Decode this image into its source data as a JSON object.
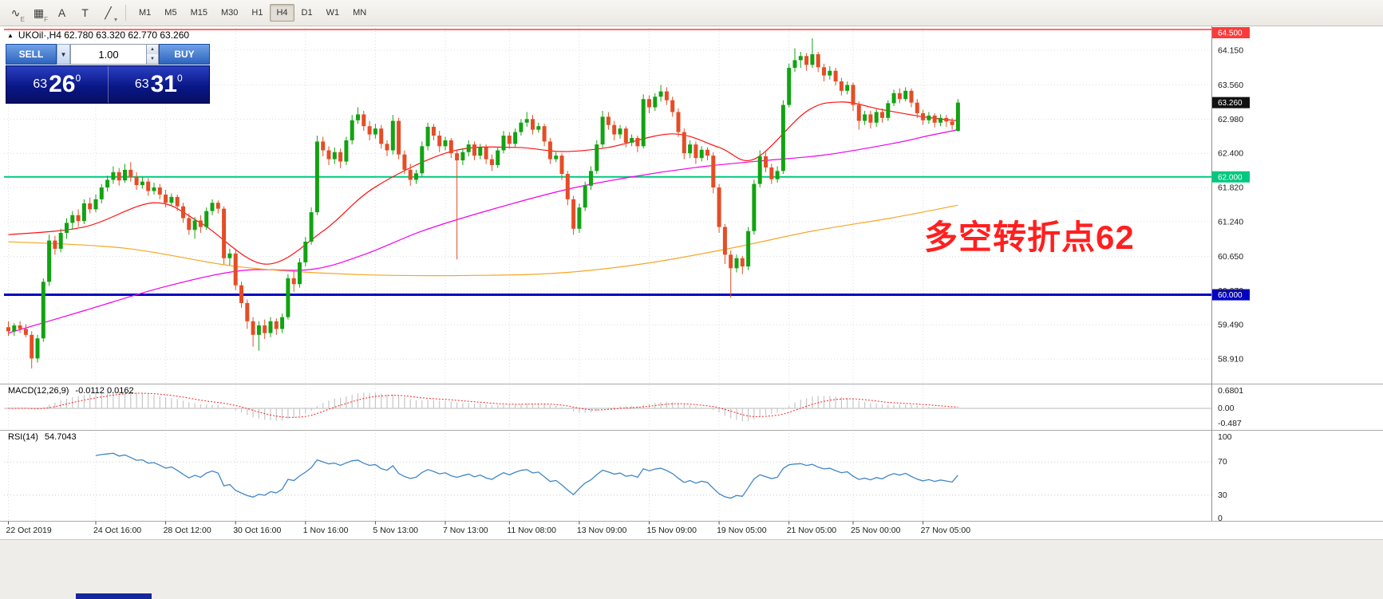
{
  "toolbar": {
    "icons": [
      {
        "name": "indicators-icon",
        "glyph": "∿",
        "badge": "E"
      },
      {
        "name": "profiles-icon",
        "glyph": "▦",
        "badge": "F"
      },
      {
        "name": "cursor-tool-icon",
        "glyph": "A",
        "badge": ""
      },
      {
        "name": "text-tool-icon",
        "glyph": "T",
        "badge": ""
      },
      {
        "name": "drawing-tools-icon",
        "glyph": "╱",
        "badge": "▾"
      }
    ],
    "timeframes": [
      "M1",
      "M5",
      "M15",
      "M30",
      "H1",
      "H4",
      "D1",
      "W1",
      "MN"
    ],
    "active_timeframe": "H4"
  },
  "chart_header": {
    "collapse_marker": "▲",
    "symbol_line": "UKOil·,H4  62.780 63.320 62.770 63.260"
  },
  "trade_panel": {
    "sell_label": "SELL",
    "buy_label": "BUY",
    "volume": "1.00",
    "dropdown_glyph": "▼",
    "spin_up_glyph": "▲",
    "spin_down_glyph": "▼",
    "bid": {
      "prefix": "63",
      "big": "26",
      "sup": "0"
    },
    "ask": {
      "prefix": "63",
      "big": "31",
      "sup": "0"
    }
  },
  "annotation": {
    "text": "多空转折点62",
    "color": "#ff1f1f"
  },
  "chart_data": {
    "type": "candlestick",
    "symbol": "UKOil",
    "timeframe": "H4",
    "ohlc_display": {
      "open": "62.780",
      "high": "63.320",
      "low": "62.770",
      "close": "63.260"
    },
    "up_color": "#12a312",
    "down_color": "#e44d26",
    "y_axis": {
      "tick_values": [
        64.15,
        63.56,
        62.98,
        62.4,
        61.82,
        61.24,
        60.65,
        60.07,
        59.49,
        58.91
      ],
      "tick_labels": [
        "64.150",
        "63.560",
        "62.980",
        "62.400",
        "61.820",
        "61.240",
        "60.650",
        "60.070",
        "59.490",
        "58.910"
      ]
    },
    "price_lines": [
      {
        "name": "resistance-line",
        "value": 64.5,
        "label": "64.500",
        "color": "#fb3b3b",
        "width": 1.4
      },
      {
        "name": "pivot-line-62",
        "value": 62.0,
        "label": "62.000",
        "color": "#00c97e",
        "width": 2
      },
      {
        "name": "support-line-60",
        "value": 60.0,
        "label": "60.000",
        "color": "#0202c4",
        "width": 3
      }
    ],
    "current_price": {
      "value": 63.26,
      "label": "63.260",
      "badge_color": "#111111"
    },
    "x_axis_labels": [
      {
        "index": 0,
        "label": "22 Oct 2019"
      },
      {
        "index": 15,
        "label": "24 Oct 16:00"
      },
      {
        "index": 27,
        "label": "28 Oct 12:00"
      },
      {
        "index": 39,
        "label": "30 Oct 16:00"
      },
      {
        "index": 51,
        "label": "1 Nov 16:00"
      },
      {
        "index": 63,
        "label": "5 Nov 13:00"
      },
      {
        "index": 75,
        "label": "7 Nov 13:00"
      },
      {
        "index": 86,
        "label": "11 Nov 08:00"
      },
      {
        "index": 98,
        "label": "13 Nov 09:00"
      },
      {
        "index": 110,
        "label": "15 Nov 09:00"
      },
      {
        "index": 122,
        "label": "19 Nov 05:00"
      },
      {
        "index": 134,
        "label": "21 Nov 05:00"
      },
      {
        "index": 145,
        "label": "25 Nov 00:00"
      },
      {
        "index": 157,
        "label": "27 Nov 05:00"
      }
    ],
    "candles": [
      [
        59.45,
        59.55,
        59.3,
        59.38
      ],
      [
        59.38,
        59.52,
        59.3,
        59.48
      ],
      [
        59.48,
        59.55,
        59.35,
        59.42
      ],
      [
        59.42,
        59.5,
        59.28,
        59.32
      ],
      [
        59.32,
        59.38,
        58.75,
        58.92
      ],
      [
        58.92,
        59.32,
        58.85,
        59.26
      ],
      [
        59.26,
        60.28,
        59.2,
        60.22
      ],
      [
        60.22,
        61.02,
        60.15,
        60.92
      ],
      [
        60.92,
        61.0,
        60.68,
        60.78
      ],
      [
        60.78,
        61.12,
        60.72,
        61.05
      ],
      [
        61.05,
        61.3,
        60.95,
        61.22
      ],
      [
        61.22,
        61.42,
        61.1,
        61.35
      ],
      [
        61.35,
        61.45,
        61.15,
        61.25
      ],
      [
        61.25,
        61.62,
        61.2,
        61.55
      ],
      [
        61.55,
        61.65,
        61.38,
        61.45
      ],
      [
        61.45,
        61.7,
        61.4,
        61.62
      ],
      [
        61.62,
        61.88,
        61.55,
        61.82
      ],
      [
        61.82,
        62.02,
        61.75,
        61.95
      ],
      [
        61.95,
        62.18,
        61.88,
        62.08
      ],
      [
        62.08,
        62.15,
        61.85,
        61.94
      ],
      [
        61.94,
        62.22,
        61.9,
        62.12
      ],
      [
        62.12,
        62.25,
        61.92,
        62.0
      ],
      [
        62.0,
        62.08,
        61.78,
        61.86
      ],
      [
        61.86,
        62.0,
        61.8,
        61.92
      ],
      [
        61.92,
        61.98,
        61.68,
        61.76
      ],
      [
        61.76,
        61.9,
        61.7,
        61.82
      ],
      [
        61.82,
        61.88,
        61.62,
        61.7
      ],
      [
        61.7,
        61.78,
        61.48,
        61.56
      ],
      [
        61.56,
        61.72,
        61.5,
        61.66
      ],
      [
        61.66,
        61.7,
        61.42,
        61.5
      ],
      [
        61.5,
        61.56,
        61.22,
        61.3
      ],
      [
        61.3,
        61.38,
        61.02,
        61.1
      ],
      [
        61.1,
        61.32,
        60.95,
        61.26
      ],
      [
        61.26,
        61.35,
        61.05,
        61.15
      ],
      [
        61.15,
        61.48,
        61.1,
        61.42
      ],
      [
        61.42,
        61.62,
        61.35,
        61.56
      ],
      [
        61.56,
        61.6,
        61.38,
        61.46
      ],
      [
        61.46,
        61.5,
        60.52,
        60.62
      ],
      [
        60.62,
        60.78,
        60.5,
        60.7
      ],
      [
        60.7,
        60.76,
        60.08,
        60.16
      ],
      [
        60.16,
        60.22,
        59.78,
        59.86
      ],
      [
        59.86,
        59.92,
        59.42,
        59.55
      ],
      [
        59.55,
        59.62,
        59.12,
        59.32
      ],
      [
        59.32,
        59.55,
        59.05,
        59.48
      ],
      [
        59.48,
        59.58,
        59.25,
        59.35
      ],
      [
        59.35,
        59.62,
        59.28,
        59.55
      ],
      [
        59.55,
        59.6,
        59.32,
        59.42
      ],
      [
        59.42,
        59.68,
        59.35,
        59.62
      ],
      [
        59.62,
        60.35,
        59.58,
        60.28
      ],
      [
        60.28,
        60.4,
        60.05,
        60.18
      ],
      [
        60.18,
        60.62,
        60.12,
        60.55
      ],
      [
        60.55,
        60.98,
        60.48,
        60.9
      ],
      [
        60.9,
        61.48,
        60.85,
        61.4
      ],
      [
        61.4,
        62.7,
        61.35,
        62.6
      ],
      [
        62.6,
        62.68,
        62.35,
        62.45
      ],
      [
        62.45,
        62.52,
        62.2,
        62.3
      ],
      [
        62.3,
        62.5,
        62.22,
        62.42
      ],
      [
        62.42,
        62.48,
        62.15,
        62.26
      ],
      [
        62.26,
        62.68,
        62.2,
        62.62
      ],
      [
        62.62,
        63.05,
        62.55,
        62.96
      ],
      [
        62.96,
        63.18,
        62.9,
        63.06
      ],
      [
        63.06,
        63.12,
        62.78,
        62.86
      ],
      [
        62.86,
        62.95,
        62.62,
        62.72
      ],
      [
        62.72,
        62.9,
        62.65,
        62.82
      ],
      [
        62.82,
        62.88,
        62.48,
        62.56
      ],
      [
        62.56,
        62.62,
        62.35,
        62.45
      ],
      [
        62.45,
        63.05,
        62.38,
        62.95
      ],
      [
        62.95,
        63.0,
        62.3,
        62.38
      ],
      [
        62.38,
        62.45,
        62.05,
        62.12
      ],
      [
        62.12,
        62.22,
        61.85,
        61.95
      ],
      [
        61.95,
        62.12,
        61.88,
        62.06
      ],
      [
        62.06,
        62.6,
        62.0,
        62.52
      ],
      [
        62.52,
        62.92,
        62.45,
        62.85
      ],
      [
        62.85,
        62.9,
        62.62,
        62.7
      ],
      [
        62.7,
        62.78,
        62.42,
        62.52
      ],
      [
        62.52,
        62.68,
        62.45,
        62.62
      ],
      [
        62.62,
        62.66,
        62.32,
        62.4
      ],
      [
        62.4,
        62.46,
        60.6,
        62.28
      ],
      [
        62.28,
        62.48,
        62.2,
        62.42
      ],
      [
        62.42,
        62.62,
        62.35,
        62.55
      ],
      [
        62.55,
        62.6,
        62.28,
        62.36
      ],
      [
        62.36,
        62.56,
        62.3,
        62.5
      ],
      [
        62.5,
        62.55,
        62.22,
        62.3
      ],
      [
        62.3,
        62.38,
        62.1,
        62.2
      ],
      [
        62.2,
        62.5,
        62.15,
        62.45
      ],
      [
        62.45,
        62.78,
        62.4,
        62.7
      ],
      [
        62.7,
        62.76,
        62.48,
        62.56
      ],
      [
        62.56,
        62.82,
        62.5,
        62.76
      ],
      [
        62.76,
        62.98,
        62.7,
        62.92
      ],
      [
        62.92,
        63.1,
        62.85,
        62.98
      ],
      [
        62.98,
        63.05,
        62.72,
        62.8
      ],
      [
        62.8,
        62.92,
        62.75,
        62.86
      ],
      [
        62.86,
        62.9,
        62.52,
        62.6
      ],
      [
        62.6,
        62.66,
        62.22,
        62.3
      ],
      [
        62.3,
        62.42,
        62.25,
        62.36
      ],
      [
        62.36,
        62.4,
        61.95,
        62.05
      ],
      [
        62.05,
        62.1,
        61.52,
        61.62
      ],
      [
        61.62,
        61.68,
        61.02,
        61.12
      ],
      [
        61.12,
        61.55,
        61.05,
        61.48
      ],
      [
        61.48,
        61.92,
        61.42,
        61.85
      ],
      [
        61.85,
        62.18,
        61.78,
        62.1
      ],
      [
        62.1,
        62.62,
        62.05,
        62.55
      ],
      [
        62.55,
        63.12,
        62.5,
        63.02
      ],
      [
        63.02,
        63.1,
        62.8,
        62.88
      ],
      [
        62.88,
        62.95,
        62.62,
        62.72
      ],
      [
        62.72,
        62.88,
        62.65,
        62.82
      ],
      [
        62.82,
        62.86,
        62.5,
        62.58
      ],
      [
        62.58,
        62.72,
        62.52,
        62.66
      ],
      [
        62.66,
        62.7,
        62.42,
        62.52
      ],
      [
        62.52,
        63.4,
        62.48,
        63.32
      ],
      [
        63.32,
        63.38,
        63.08,
        63.18
      ],
      [
        63.18,
        63.42,
        63.12,
        63.36
      ],
      [
        63.36,
        63.56,
        63.28,
        63.45
      ],
      [
        63.45,
        63.52,
        63.22,
        63.3
      ],
      [
        63.3,
        63.36,
        63.02,
        63.1
      ],
      [
        63.1,
        63.16,
        62.68,
        62.76
      ],
      [
        62.76,
        62.82,
        62.3,
        62.4
      ],
      [
        62.4,
        62.62,
        62.32,
        62.55
      ],
      [
        62.55,
        62.6,
        62.22,
        62.32
      ],
      [
        62.32,
        62.52,
        62.26,
        62.46
      ],
      [
        62.46,
        62.5,
        62.28,
        62.36
      ],
      [
        62.36,
        62.42,
        61.72,
        61.82
      ],
      [
        61.82,
        61.88,
        61.05,
        61.15
      ],
      [
        61.15,
        61.2,
        60.52,
        60.68
      ],
      [
        60.68,
        60.75,
        59.95,
        60.45
      ],
      [
        60.45,
        60.68,
        60.38,
        60.62
      ],
      [
        60.62,
        60.66,
        60.35,
        60.48
      ],
      [
        60.48,
        61.15,
        60.42,
        61.08
      ],
      [
        61.08,
        61.95,
        61.02,
        61.88
      ],
      [
        61.88,
        62.45,
        61.82,
        62.35
      ],
      [
        62.35,
        62.42,
        62.08,
        62.16
      ],
      [
        62.16,
        62.22,
        61.88,
        61.96
      ],
      [
        61.96,
        62.18,
        61.9,
        62.1
      ],
      [
        62.1,
        63.3,
        62.05,
        63.22
      ],
      [
        63.22,
        63.92,
        63.18,
        63.85
      ],
      [
        63.85,
        64.18,
        63.78,
        63.98
      ],
      [
        63.98,
        64.12,
        63.85,
        64.05
      ],
      [
        64.05,
        64.1,
        63.8,
        63.9
      ],
      [
        63.9,
        64.35,
        63.85,
        64.08
      ],
      [
        64.08,
        64.12,
        63.78,
        63.86
      ],
      [
        63.86,
        63.92,
        63.62,
        63.72
      ],
      [
        63.72,
        63.88,
        63.65,
        63.8
      ],
      [
        63.8,
        63.85,
        63.55,
        63.62
      ],
      [
        63.62,
        63.68,
        63.38,
        63.46
      ],
      [
        63.46,
        63.62,
        63.4,
        63.56
      ],
      [
        63.56,
        63.6,
        63.12,
        63.22
      ],
      [
        63.22,
        63.28,
        62.8,
        62.95
      ],
      [
        62.95,
        63.12,
        62.88,
        63.06
      ],
      [
        63.06,
        63.12,
        62.82,
        62.92
      ],
      [
        62.92,
        63.15,
        62.85,
        63.1
      ],
      [
        63.1,
        63.16,
        62.92,
        63.0
      ],
      [
        63.0,
        63.3,
        62.95,
        63.25
      ],
      [
        63.25,
        63.48,
        63.2,
        63.42
      ],
      [
        63.42,
        63.5,
        63.25,
        63.32
      ],
      [
        63.32,
        63.52,
        63.28,
        63.46
      ],
      [
        63.46,
        63.5,
        63.18,
        63.26
      ],
      [
        63.26,
        63.32,
        63.0,
        63.08
      ],
      [
        63.08,
        63.14,
        62.88,
        62.96
      ],
      [
        62.96,
        63.1,
        62.9,
        63.04
      ],
      [
        63.04,
        63.08,
        62.84,
        62.92
      ],
      [
        62.92,
        63.06,
        62.86,
        63.0
      ],
      [
        63.0,
        63.05,
        62.85,
        62.94
      ],
      [
        62.94,
        63.0,
        62.8,
        62.88
      ],
      [
        62.78,
        63.32,
        62.77,
        63.26
      ]
    ],
    "ma_lines": [
      {
        "name": "ma-fast",
        "color": "#ff1010",
        "points": [
          [
            0,
            61.02
          ],
          [
            13,
            61.15
          ],
          [
            25,
            61.56
          ],
          [
            33,
            61.22
          ],
          [
            44,
            60.52
          ],
          [
            54,
            61.08
          ],
          [
            63,
            61.83
          ],
          [
            76,
            62.43
          ],
          [
            87,
            62.5
          ],
          [
            95,
            62.43
          ],
          [
            103,
            62.5
          ],
          [
            114,
            62.73
          ],
          [
            122,
            62.5
          ],
          [
            128,
            62.3
          ],
          [
            137,
            63.11
          ],
          [
            143,
            63.27
          ],
          [
            150,
            63.14
          ],
          [
            157,
            63.02
          ],
          [
            163,
            62.95
          ]
        ]
      },
      {
        "name": "ma-mid",
        "color": "#ee00ee",
        "points": [
          [
            0,
            59.35
          ],
          [
            13,
            59.73
          ],
          [
            27,
            60.14
          ],
          [
            40,
            60.41
          ],
          [
            52,
            60.43
          ],
          [
            61,
            60.68
          ],
          [
            71,
            61.08
          ],
          [
            82,
            61.42
          ],
          [
            96,
            61.79
          ],
          [
            107,
            62.0
          ],
          [
            118,
            62.16
          ],
          [
            129,
            62.27
          ],
          [
            140,
            62.37
          ],
          [
            152,
            62.57
          ],
          [
            158,
            62.7
          ],
          [
            163,
            62.8
          ]
        ]
      },
      {
        "name": "ma-slow",
        "color": "#f6a623",
        "points": [
          [
            0,
            60.9
          ],
          [
            20,
            60.79
          ],
          [
            40,
            60.47
          ],
          [
            61,
            60.34
          ],
          [
            82,
            60.33
          ],
          [
            96,
            60.38
          ],
          [
            110,
            60.54
          ],
          [
            124,
            60.79
          ],
          [
            138,
            61.08
          ],
          [
            152,
            61.31
          ],
          [
            163,
            61.52
          ]
        ]
      }
    ],
    "macd": {
      "title": "MACD(12,26,9)",
      "values": "-0.0112 0.0162",
      "fast": 12,
      "slow": 26,
      "signal": 9,
      "axis_labels": [
        "0.6801",
        "0.00",
        "-0.487"
      ],
      "histogram_color": "#c6c6c6",
      "signal_color": "#ff2020"
    },
    "rsi": {
      "title": "RSI(14)",
      "value": "54.7043",
      "period": 14,
      "levels": [
        70,
        30
      ],
      "axis_labels": [
        "100",
        "70",
        "30",
        "0"
      ],
      "line_color": "#3f86c9"
    }
  }
}
